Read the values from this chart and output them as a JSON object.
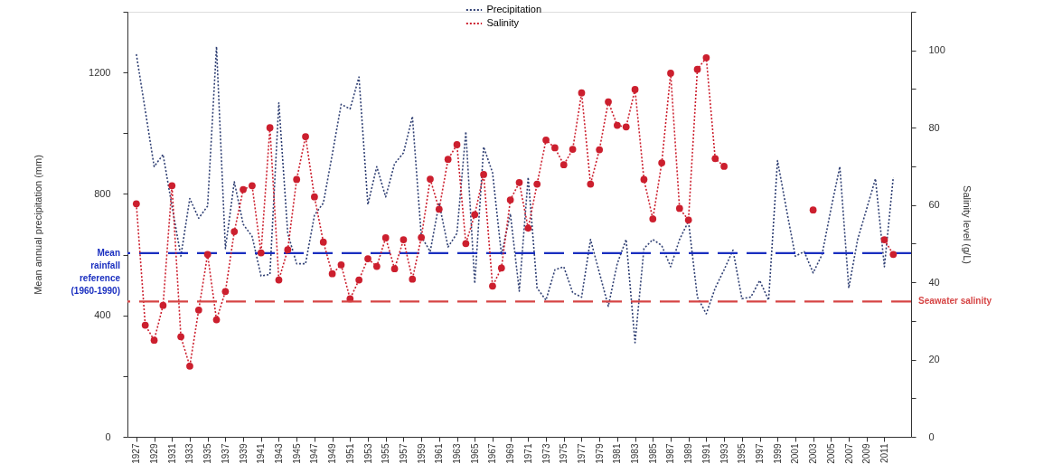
{
  "chart_data": {
    "type": "line",
    "ylabel": "Mean annual precipitation (mm)",
    "y2label": "Salinity level (g/L)",
    "x": [
      1927,
      1928,
      1929,
      1930,
      1931,
      1932,
      1933,
      1934,
      1935,
      1936,
      1937,
      1938,
      1939,
      1940,
      1941,
      1942,
      1943,
      1944,
      1945,
      1946,
      1947,
      1948,
      1949,
      1950,
      1951,
      1952,
      1953,
      1954,
      1955,
      1956,
      1957,
      1958,
      1959,
      1960,
      1961,
      1962,
      1963,
      1964,
      1965,
      1966,
      1967,
      1968,
      1969,
      1970,
      1971,
      1972,
      1973,
      1974,
      1975,
      1976,
      1977,
      1978,
      1979,
      1980,
      1981,
      1982,
      1983,
      1984,
      1985,
      1986,
      1987,
      1988,
      1989,
      1990,
      1991,
      1992,
      1993,
      1994,
      1995,
      1996,
      1997,
      1998,
      1999,
      2000,
      2001,
      2002,
      2003,
      2004,
      2005,
      2006,
      2007,
      2008,
      2009,
      2010,
      2011,
      2012
    ],
    "series": [
      {
        "name": "Precipitation",
        "color": "#2f3f73",
        "line_style": "dotted",
        "marker": "none",
        "values": [
          1260,
          1075,
          890,
          930,
          760,
          595,
          785,
          720,
          760,
          1285,
          620,
          840,
          700,
          660,
          530,
          535,
          1100,
          670,
          570,
          570,
          730,
          770,
          930,
          1095,
          1080,
          1185,
          765,
          890,
          790,
          900,
          935,
          1055,
          660,
          610,
          770,
          625,
          670,
          1005,
          505,
          955,
          870,
          600,
          735,
          480,
          855,
          490,
          450,
          550,
          560,
          475,
          460,
          650,
          540,
          430,
          570,
          650,
          310,
          620,
          650,
          630,
          560,
          650,
          710,
          460,
          405,
          490,
          550,
          615,
          455,
          460,
          515,
          450,
          910,
          750,
          595,
          610,
          540,
          600,
          750,
          890,
          490,
          650,
          750,
          850,
          560,
          855
        ]
      },
      {
        "name": "Salinity",
        "color": "#cc1f2e",
        "axis": "y2",
        "line_style": "dotted",
        "marker": "circle",
        "values": [
          60.3,
          28.9,
          25.0,
          34.0,
          65.0,
          25.9,
          18.3,
          32.8,
          47.2,
          30.3,
          37.6,
          53.1,
          64.0,
          65.0,
          47.6,
          80.0,
          40.6,
          48.4,
          66.6,
          77.7,
          62.1,
          50.4,
          42.2,
          44.5,
          35.7,
          40.6,
          46.1,
          44.1,
          51.5,
          43.5,
          51.0,
          40.8,
          51.6,
          66.7,
          58.9,
          71.8,
          75.6,
          50.0,
          57.5,
          67.9,
          39.0,
          43.7,
          61.3,
          65.8,
          54.0,
          65.4,
          76.8,
          74.8,
          70.4,
          74.4,
          89.0,
          65.4,
          74.3,
          86.7,
          80.6,
          80.2,
          89.9,
          66.6,
          56.4,
          70.9,
          94.1,
          59.1,
          56.1,
          95.1,
          98.1,
          72.0,
          70.0,
          null,
          null,
          null,
          null,
          null,
          null,
          null,
          null,
          null,
          58.7,
          null,
          null,
          null,
          null,
          null,
          null,
          null,
          51.0,
          47.2
        ]
      }
    ],
    "xlim": [
      1926,
      2014
    ],
    "xticks": [
      1927,
      1929,
      1931,
      1933,
      1935,
      1937,
      1939,
      1941,
      1943,
      1945,
      1947,
      1949,
      1951,
      1953,
      1955,
      1957,
      1959,
      1961,
      1963,
      1965,
      1967,
      1969,
      1971,
      1973,
      1975,
      1977,
      1979,
      1981,
      1983,
      1985,
      1987,
      1989,
      1991,
      1993,
      1995,
      1997,
      1999,
      2001,
      2003,
      2005,
      2007,
      2009,
      2011
    ],
    "ylim": [
      0,
      1400
    ],
    "yticks": [
      0,
      {
        "value": 200,
        "label": null
      },
      400,
      {
        "value": 600,
        "label": null
      },
      800,
      {
        "value": 1000,
        "label": null
      },
      1200,
      {
        "value": 1400,
        "label": null
      }
    ],
    "y2lim": [
      0,
      110
    ],
    "y2ticks": [
      0,
      {
        "value": 10,
        "label": null
      },
      20,
      {
        "value": 30,
        "label": null
      },
      40,
      {
        "value": 50,
        "label": null
      },
      60,
      {
        "value": 70,
        "label": null
      },
      80,
      {
        "value": 90,
        "label": null
      },
      100,
      {
        "value": 110,
        "label": null
      }
    ],
    "ref_lines": [
      {
        "axis": "y",
        "value": 605,
        "label": "Mean rainfall reference (1960-1990)",
        "color": "#1a2fc0",
        "line_style": "dashed"
      },
      {
        "axis": "y2",
        "value": 35,
        "label": "Seawater salinity",
        "color": "#d64545",
        "line_style": "dashed"
      }
    ],
    "grid": false,
    "legend": "top"
  }
}
